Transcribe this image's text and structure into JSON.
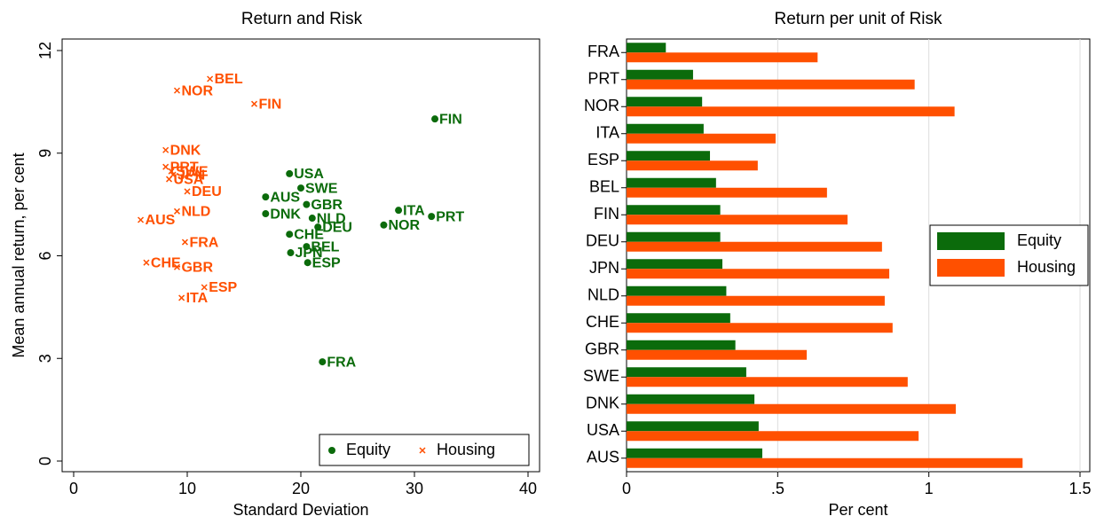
{
  "chart_data": [
    {
      "type": "scatter",
      "title": "Return and Risk",
      "xlabel": "Standard Deviation",
      "ylabel": "Mean annual return, per cent",
      "xlim": [
        0,
        40
      ],
      "xticks": [
        0,
        10,
        20,
        30,
        40
      ],
      "ylim": [
        0,
        12
      ],
      "yticks": [
        0,
        3,
        6,
        9,
        12
      ],
      "grid": false,
      "legend": "lower right",
      "series": [
        {
          "name": "Equity",
          "color": "#0b6b0b",
          "marker": "circle",
          "labels": [
            "FIN",
            "USA",
            "SWE",
            "AUS",
            "GBR",
            "DNK",
            "ITA",
            "PRT",
            "NLD",
            "NOR",
            "DEU",
            "CHE",
            "BEL",
            "JPN",
            "ESP",
            "FRA"
          ],
          "x": [
            31.8,
            19.0,
            20.0,
            16.9,
            20.5,
            16.9,
            28.6,
            31.5,
            21.0,
            27.3,
            21.5,
            19.0,
            20.5,
            19.1,
            20.6,
            21.9
          ],
          "values": [
            10.0,
            8.4,
            7.98,
            7.72,
            7.5,
            7.23,
            7.33,
            7.15,
            7.1,
            6.9,
            6.84,
            6.63,
            6.27,
            6.09,
            5.8,
            2.9
          ]
        },
        {
          "name": "Housing",
          "color": "#ff5000",
          "marker": "x",
          "labels": [
            "BEL",
            "NOR",
            "FIN",
            "DNK",
            "PRT",
            "SWE",
            "JPN",
            "USA",
            "DEU",
            "NLD",
            "AUS",
            "FRA",
            "CHE",
            "GBR",
            "ESP",
            "ITA"
          ],
          "x": [
            12.0,
            9.1,
            15.9,
            8.1,
            8.1,
            8.6,
            8.75,
            8.4,
            10.0,
            9.1,
            5.9,
            9.8,
            6.4,
            9.1,
            11.5,
            9.5
          ],
          "values": [
            11.17,
            10.83,
            10.44,
            9.09,
            8.6,
            8.47,
            8.37,
            8.24,
            7.88,
            7.3,
            7.05,
            6.4,
            5.8,
            5.67,
            5.08,
            4.77
          ]
        }
      ]
    },
    {
      "type": "bar",
      "orientation": "horizontal",
      "title": "Return per unit of Risk",
      "xlabel": "Per cent",
      "xlim": [
        0,
        1.5
      ],
      "xticks": [
        0,
        {
          "value": 0.5,
          "label": ".5"
        },
        1,
        1.5
      ],
      "grid": true,
      "legend": "right",
      "categories": [
        "FRA",
        "PRT",
        "NOR",
        "ITA",
        "ESP",
        "BEL",
        "FIN",
        "DEU",
        "JPN",
        "NLD",
        "CHE",
        "GBR",
        "SWE",
        "DNK",
        "USA",
        "AUS"
      ],
      "series": [
        {
          "name": "Equity",
          "color": "#0b6b0b",
          "values": [
            0.13,
            0.22,
            0.25,
            0.255,
            0.276,
            0.296,
            0.31,
            0.31,
            0.317,
            0.33,
            0.343,
            0.36,
            0.396,
            0.423,
            0.437,
            0.449
          ]
        },
        {
          "name": "Housing",
          "color": "#ff5000",
          "values": [
            0.632,
            0.953,
            1.085,
            0.493,
            0.434,
            0.663,
            0.731,
            0.845,
            0.869,
            0.854,
            0.88,
            0.596,
            0.93,
            1.089,
            0.966,
            1.31
          ]
        }
      ]
    }
  ]
}
